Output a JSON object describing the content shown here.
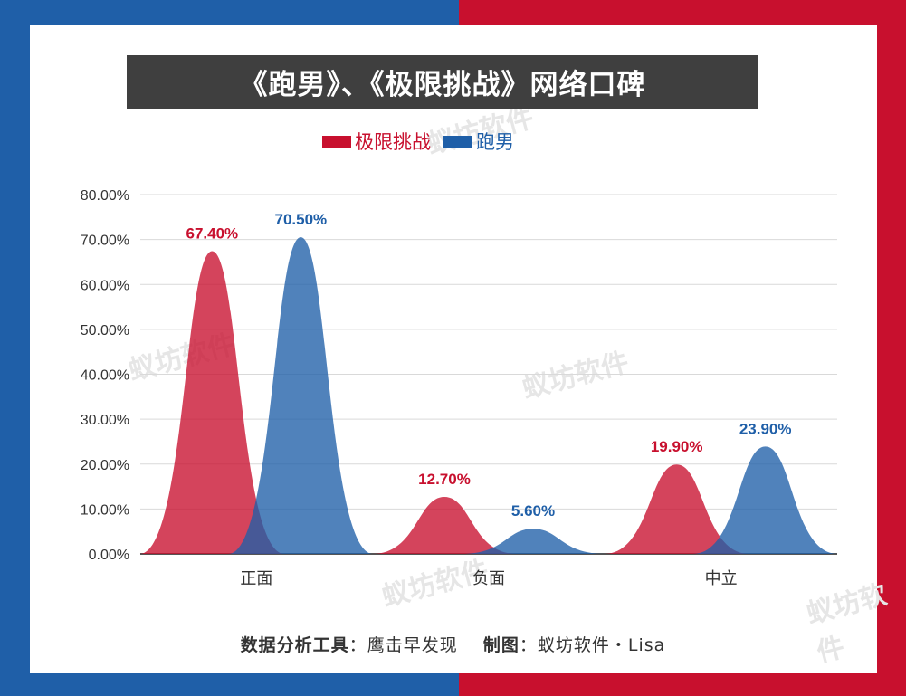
{
  "title": "《跑男》、《极限挑战》网络口碑",
  "colors": {
    "red": "#c8102e",
    "blue": "#1f5fa8",
    "title_bg": "#3f3f3f"
  },
  "watermark": "蚁坊软件",
  "footer": {
    "tool_label": "数据分析工具",
    "tool_value": "鹰击早发现",
    "author_label": "制图",
    "author_value": "蚁坊软件・Lisa"
  },
  "chart_data": {
    "type": "area",
    "title": "《跑男》、《极限挑战》网络口碑",
    "categories": [
      "正面",
      "负面",
      "中立"
    ],
    "series": [
      {
        "name": "极限挑战",
        "color": "#c8102e",
        "values": [
          67.4,
          12.7,
          19.9
        ],
        "labels": [
          "67.40%",
          "12.70%",
          "19.90%"
        ]
      },
      {
        "name": "跑男",
        "color": "#1f5fa8",
        "values": [
          70.5,
          5.6,
          23.9
        ],
        "labels": [
          "70.50%",
          "5.60%",
          "23.90%"
        ]
      }
    ],
    "ylim": [
      0,
      80
    ],
    "yticks": [
      "0.00%",
      "10.00%",
      "20.00%",
      "30.00%",
      "40.00%",
      "50.00%",
      "60.00%",
      "70.00%",
      "80.00%"
    ],
    "grid": true,
    "legend": "top-center"
  }
}
